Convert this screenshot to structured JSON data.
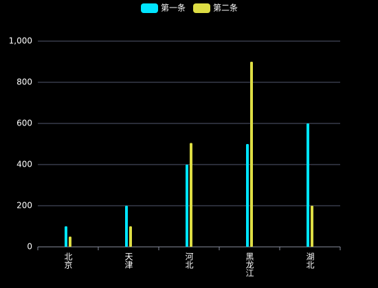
{
  "chart_data": {
    "type": "bar",
    "categories": [
      "北京",
      "天津",
      "河北",
      "黑龙江",
      "湖北"
    ],
    "series": [
      {
        "name": "第一条",
        "color": "#00e5ff",
        "values": [
          100,
          200,
          400,
          500,
          600
        ]
      },
      {
        "name": "第二条",
        "color": "#dddd44",
        "values": [
          50,
          100,
          505,
          900,
          200
        ]
      }
    ],
    "ylim": [
      0,
      1000
    ],
    "yticks": [
      0,
      200,
      400,
      600,
      800,
      {
        "value": 1000,
        "label": "1,000"
      }
    ],
    "grid": true
  }
}
